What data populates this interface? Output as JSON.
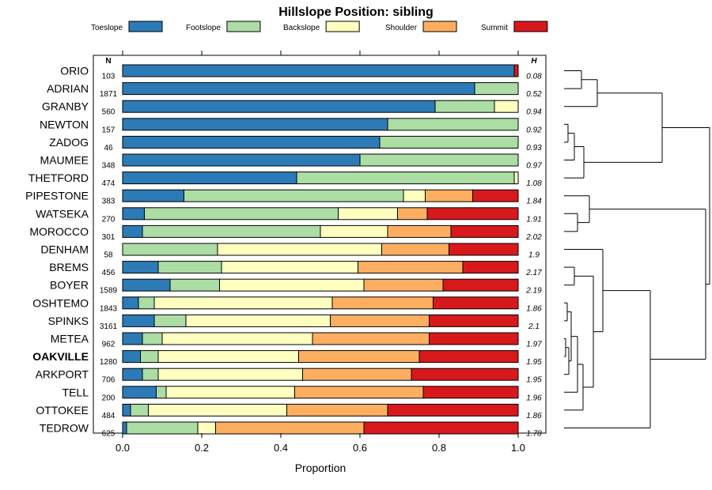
{
  "chart_data": {
    "type": "stacked-bar",
    "title": "Hillslope Position: sibling",
    "xlabel": "Proportion",
    "xlim": [
      0,
      1
    ],
    "xticks": [
      "0.0",
      "0.2",
      "0.4",
      "0.6",
      "0.8",
      "1.0"
    ],
    "n_header": "N",
    "h_header": "H",
    "highlight": "OAKVILLE",
    "legend": [
      {
        "name": "Toeslope",
        "color": "#2c7bb6"
      },
      {
        "name": "Footslope",
        "color": "#abdda4"
      },
      {
        "name": "Backslope",
        "color": "#ffffbf"
      },
      {
        "name": "Shoulder",
        "color": "#fdae61"
      },
      {
        "name": "Summit",
        "color": "#d7191c"
      }
    ],
    "rows": [
      {
        "name": "ORIO",
        "n": "103",
        "h": "0.08",
        "values": [
          0.99,
          0.0,
          0.0,
          0.0,
          0.01
        ]
      },
      {
        "name": "ADRIAN",
        "n": "1871",
        "h": "0.52",
        "values": [
          0.89,
          0.11,
          0.0,
          0.0,
          0.0
        ]
      },
      {
        "name": "GRANBY",
        "n": "560",
        "h": "0.94",
        "values": [
          0.79,
          0.15,
          0.06,
          0.0,
          0.0
        ]
      },
      {
        "name": "NEWTON",
        "n": "157",
        "h": "0.92",
        "values": [
          0.67,
          0.33,
          0.0,
          0.0,
          0.0
        ]
      },
      {
        "name": "ZADOG",
        "n": "46",
        "h": "0.93",
        "values": [
          0.65,
          0.35,
          0.0,
          0.0,
          0.0
        ]
      },
      {
        "name": "MAUMEE",
        "n": "348",
        "h": "0.97",
        "values": [
          0.6,
          0.4,
          0.0,
          0.0,
          0.0
        ]
      },
      {
        "name": "THETFORD",
        "n": "474",
        "h": "1.08",
        "values": [
          0.44,
          0.55,
          0.01,
          0.0,
          0.0
        ]
      },
      {
        "name": "PIPESTONE",
        "n": "383",
        "h": "1.84",
        "values": [
          0.155,
          0.555,
          0.055,
          0.12,
          0.115
        ]
      },
      {
        "name": "WATSEKA",
        "n": "270",
        "h": "1.91",
        "values": [
          0.055,
          0.49,
          0.15,
          0.075,
          0.23
        ]
      },
      {
        "name": "MOROCCO",
        "n": "301",
        "h": "2.02",
        "values": [
          0.05,
          0.45,
          0.17,
          0.16,
          0.17
        ]
      },
      {
        "name": "DENHAM",
        "n": "58",
        "h": "1.9",
        "values": [
          0.0,
          0.24,
          0.415,
          0.17,
          0.175
        ]
      },
      {
        "name": "BREMS",
        "n": "456",
        "h": "2.17",
        "values": [
          0.09,
          0.16,
          0.345,
          0.265,
          0.14
        ]
      },
      {
        "name": "BOYER",
        "n": "1589",
        "h": "2.19",
        "values": [
          0.12,
          0.125,
          0.365,
          0.2,
          0.19
        ]
      },
      {
        "name": "OSHTEMO",
        "n": "1843",
        "h": "1.86",
        "values": [
          0.04,
          0.04,
          0.45,
          0.255,
          0.215
        ]
      },
      {
        "name": "SPINKS",
        "n": "3161",
        "h": "2.1",
        "values": [
          0.08,
          0.08,
          0.365,
          0.25,
          0.225
        ]
      },
      {
        "name": "METEA",
        "n": "962",
        "h": "1.97",
        "values": [
          0.05,
          0.05,
          0.38,
          0.295,
          0.225
        ]
      },
      {
        "name": "OAKVILLE",
        "n": "1280",
        "h": "1.95",
        "values": [
          0.045,
          0.045,
          0.355,
          0.305,
          0.25
        ]
      },
      {
        "name": "ARKPORT",
        "n": "706",
        "h": "1.95",
        "values": [
          0.05,
          0.04,
          0.365,
          0.275,
          0.27
        ]
      },
      {
        "name": "TELL",
        "n": "200",
        "h": "1.96",
        "values": [
          0.085,
          0.025,
          0.325,
          0.325,
          0.24
        ]
      },
      {
        "name": "OTTOKEE",
        "n": "484",
        "h": "1.86",
        "values": [
          0.02,
          0.045,
          0.35,
          0.255,
          0.33
        ]
      },
      {
        "name": "TEDROW",
        "n": "625",
        "h": "1.78",
        "values": [
          0.01,
          0.18,
          0.045,
          0.375,
          0.39
        ]
      }
    ],
    "dendrogram_leaf_order": [
      "ORIO",
      "ADRIAN",
      "GRANBY",
      "NEWTON",
      "ZADOG",
      "MAUMEE",
      "THETFORD",
      "PIPESTONE",
      "WATSEKA",
      "MOROCCO",
      "DENHAM",
      "BREMS",
      "BOYER",
      "OSHTEMO",
      "SPINKS",
      "METEA",
      "OAKVILLE",
      "ARKPORT",
      "TELL",
      "OTTOKEE",
      "TEDROW"
    ]
  }
}
